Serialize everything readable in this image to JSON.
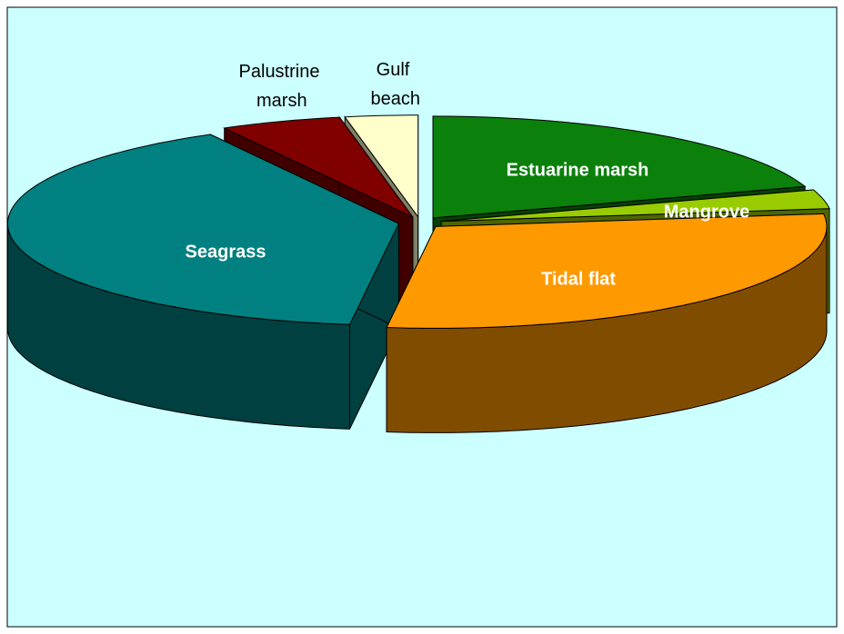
{
  "chart_data": {
    "type": "pie3d",
    "categories": [
      "Estuarine marsh",
      "Mangrove",
      "Tidal flat",
      "Seagrass",
      "Palustrine marsh",
      "Gulf beach"
    ],
    "values": [
      20,
      3,
      29,
      40,
      5,
      3
    ],
    "colors": [
      "#0b800b",
      "#99cc00",
      "#ff9900",
      "#008080",
      "#800000",
      "#ffffcc"
    ]
  }
}
